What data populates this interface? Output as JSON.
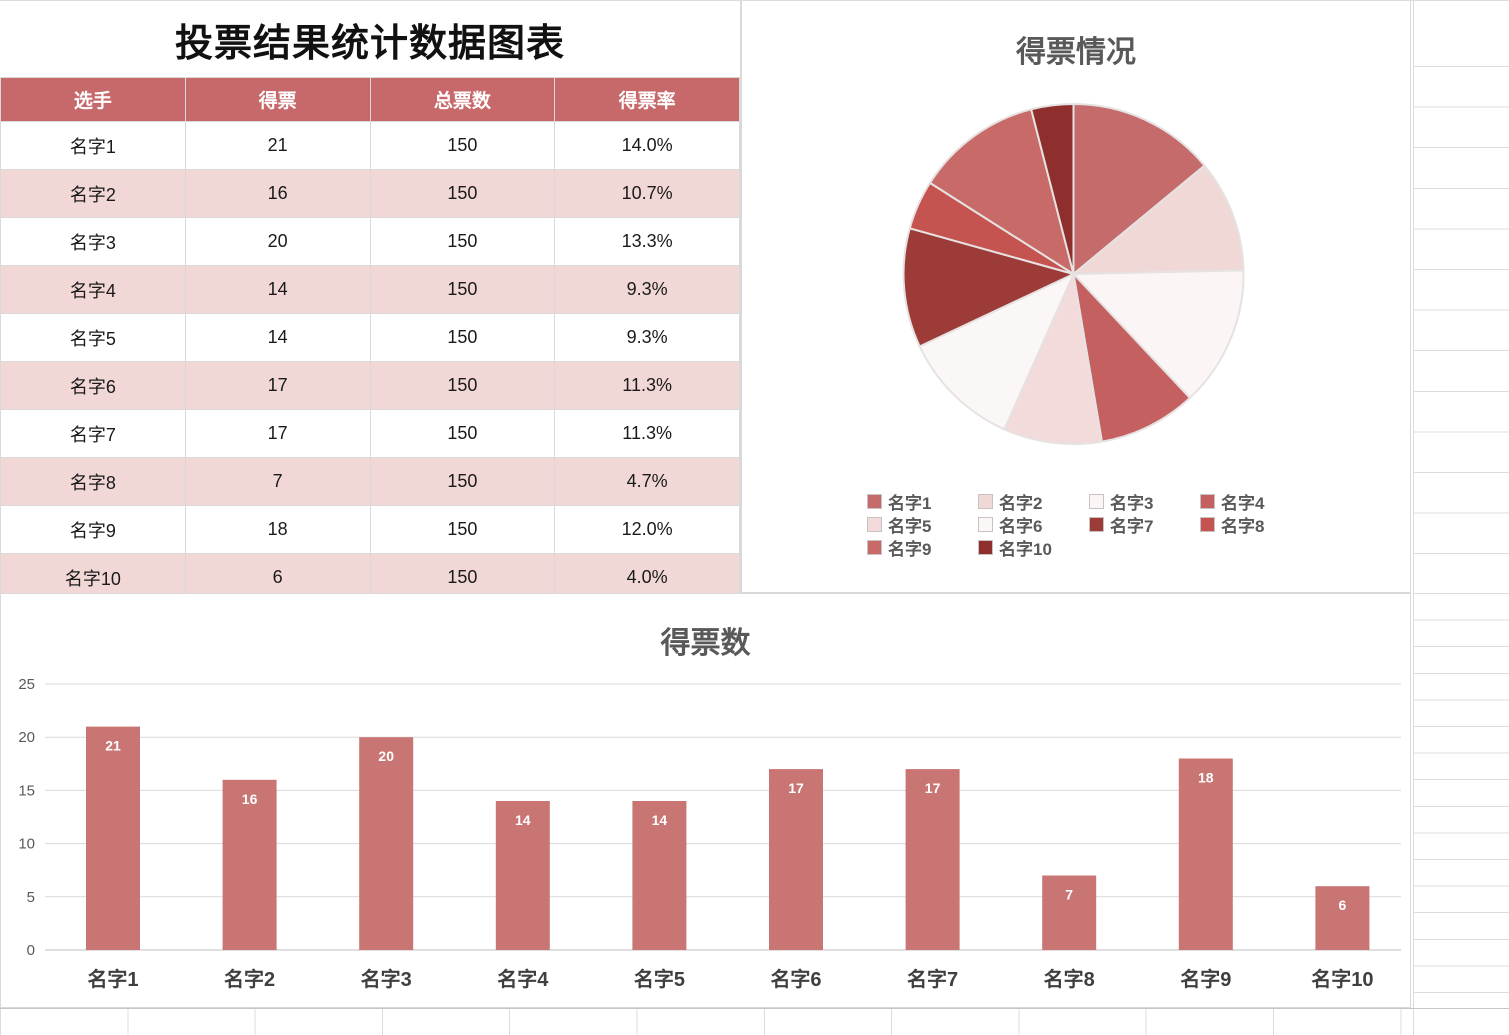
{
  "table": {
    "title": "投票结果统计数据图表",
    "headers": [
      "选手",
      "得票",
      "总票数",
      "得票率"
    ],
    "rows": [
      [
        "名字1",
        "21",
        "150",
        "14.0%"
      ],
      [
        "名字2",
        "16",
        "150",
        "10.7%"
      ],
      [
        "名字3",
        "20",
        "150",
        "13.3%"
      ],
      [
        "名字4",
        "14",
        "150",
        "9.3%"
      ],
      [
        "名字5",
        "14",
        "150",
        "9.3%"
      ],
      [
        "名字6",
        "17",
        "150",
        "11.3%"
      ],
      [
        "名字7",
        "17",
        "150",
        "11.3%"
      ],
      [
        "名字8",
        "7",
        "150",
        "4.7%"
      ],
      [
        "名字9",
        "18",
        "150",
        "12.0%"
      ],
      [
        "名字10",
        "6",
        "150",
        "4.0%"
      ]
    ],
    "header_bg": "#c7696b",
    "alt_row_bg": "#f2d7d7"
  },
  "chart_data": [
    {
      "type": "pie",
      "title": "得票情况",
      "labels": [
        "名字1",
        "名字2",
        "名字3",
        "名字4",
        "名字5",
        "名字6",
        "名字7",
        "名字8",
        "名字9",
        "名字10"
      ],
      "values": [
        21,
        16,
        20,
        14,
        14,
        17,
        17,
        7,
        18,
        6
      ],
      "percents": [
        14.0,
        10.7,
        13.3,
        9.3,
        9.3,
        11.3,
        11.3,
        4.7,
        12.0,
        4.0
      ],
      "colors": [
        "#c56b6b",
        "#f0d8d7",
        "#fbf5f5",
        "#c4605f",
        "#f2dbda",
        "#fcf7f7",
        "#9d3b38",
        "#c5534f",
        "#c76a68",
        "#8e2f2d"
      ],
      "slice_stroke": "#e6e2e2",
      "start_angle_deg": 0,
      "direction": "clockwise",
      "legend_position": "bottom"
    },
    {
      "type": "bar",
      "title": "得票数",
      "categories": [
        "名字1",
        "名字2",
        "名字3",
        "名字4",
        "名字5",
        "名字6",
        "名字7",
        "名字8",
        "名字9",
        "名字10"
      ],
      "values": [
        21,
        16,
        20,
        14,
        14,
        17,
        17,
        7,
        18,
        6
      ],
      "ylim": [
        0,
        25
      ],
      "yticks": [
        0,
        5,
        10,
        15,
        20,
        25
      ],
      "grid": true,
      "bar_color": "#c87573",
      "value_label_color": "#ffffff",
      "value_labels": "inside-end",
      "axis_text_color": "#595959",
      "category_text_color": "#3f3f3f",
      "gridline_color": "#d9d9d9",
      "baseline_color": "#bfbfbf"
    }
  ]
}
